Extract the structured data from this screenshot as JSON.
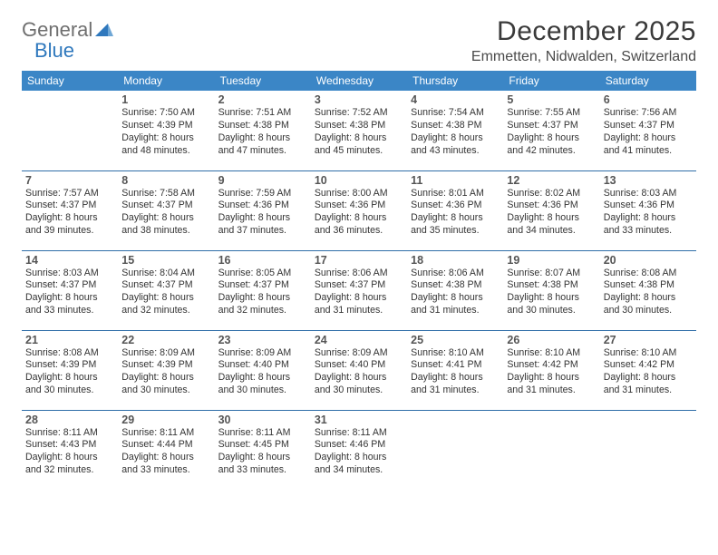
{
  "brand": {
    "word1": "General",
    "word2": "Blue"
  },
  "title": "December 2025",
  "location": "Emmetten, Nidwalden, Switzerland",
  "colors": {
    "header_bg": "#3b86c6",
    "header_text": "#ffffff",
    "row_border": "#2f6ea8",
    "brand_gray": "#6f6f6f",
    "brand_blue": "#2f78bd",
    "page_bg": "#ffffff"
  },
  "day_headers": [
    "Sunday",
    "Monday",
    "Tuesday",
    "Wednesday",
    "Thursday",
    "Friday",
    "Saturday"
  ],
  "weeks": [
    [
      null,
      {
        "n": "1",
        "sr": "7:50 AM",
        "ss": "4:39 PM",
        "dl": "8 hours and 48 minutes."
      },
      {
        "n": "2",
        "sr": "7:51 AM",
        "ss": "4:38 PM",
        "dl": "8 hours and 47 minutes."
      },
      {
        "n": "3",
        "sr": "7:52 AM",
        "ss": "4:38 PM",
        "dl": "8 hours and 45 minutes."
      },
      {
        "n": "4",
        "sr": "7:54 AM",
        "ss": "4:38 PM",
        "dl": "8 hours and 43 minutes."
      },
      {
        "n": "5",
        "sr": "7:55 AM",
        "ss": "4:37 PM",
        "dl": "8 hours and 42 minutes."
      },
      {
        "n": "6",
        "sr": "7:56 AM",
        "ss": "4:37 PM",
        "dl": "8 hours and 41 minutes."
      }
    ],
    [
      {
        "n": "7",
        "sr": "7:57 AM",
        "ss": "4:37 PM",
        "dl": "8 hours and 39 minutes."
      },
      {
        "n": "8",
        "sr": "7:58 AM",
        "ss": "4:37 PM",
        "dl": "8 hours and 38 minutes."
      },
      {
        "n": "9",
        "sr": "7:59 AM",
        "ss": "4:36 PM",
        "dl": "8 hours and 37 minutes."
      },
      {
        "n": "10",
        "sr": "8:00 AM",
        "ss": "4:36 PM",
        "dl": "8 hours and 36 minutes."
      },
      {
        "n": "11",
        "sr": "8:01 AM",
        "ss": "4:36 PM",
        "dl": "8 hours and 35 minutes."
      },
      {
        "n": "12",
        "sr": "8:02 AM",
        "ss": "4:36 PM",
        "dl": "8 hours and 34 minutes."
      },
      {
        "n": "13",
        "sr": "8:03 AM",
        "ss": "4:36 PM",
        "dl": "8 hours and 33 minutes."
      }
    ],
    [
      {
        "n": "14",
        "sr": "8:03 AM",
        "ss": "4:37 PM",
        "dl": "8 hours and 33 minutes."
      },
      {
        "n": "15",
        "sr": "8:04 AM",
        "ss": "4:37 PM",
        "dl": "8 hours and 32 minutes."
      },
      {
        "n": "16",
        "sr": "8:05 AM",
        "ss": "4:37 PM",
        "dl": "8 hours and 32 minutes."
      },
      {
        "n": "17",
        "sr": "8:06 AM",
        "ss": "4:37 PM",
        "dl": "8 hours and 31 minutes."
      },
      {
        "n": "18",
        "sr": "8:06 AM",
        "ss": "4:38 PM",
        "dl": "8 hours and 31 minutes."
      },
      {
        "n": "19",
        "sr": "8:07 AM",
        "ss": "4:38 PM",
        "dl": "8 hours and 30 minutes."
      },
      {
        "n": "20",
        "sr": "8:08 AM",
        "ss": "4:38 PM",
        "dl": "8 hours and 30 minutes."
      }
    ],
    [
      {
        "n": "21",
        "sr": "8:08 AM",
        "ss": "4:39 PM",
        "dl": "8 hours and 30 minutes."
      },
      {
        "n": "22",
        "sr": "8:09 AM",
        "ss": "4:39 PM",
        "dl": "8 hours and 30 minutes."
      },
      {
        "n": "23",
        "sr": "8:09 AM",
        "ss": "4:40 PM",
        "dl": "8 hours and 30 minutes."
      },
      {
        "n": "24",
        "sr": "8:09 AM",
        "ss": "4:40 PM",
        "dl": "8 hours and 30 minutes."
      },
      {
        "n": "25",
        "sr": "8:10 AM",
        "ss": "4:41 PM",
        "dl": "8 hours and 31 minutes."
      },
      {
        "n": "26",
        "sr": "8:10 AM",
        "ss": "4:42 PM",
        "dl": "8 hours and 31 minutes."
      },
      {
        "n": "27",
        "sr": "8:10 AM",
        "ss": "4:42 PM",
        "dl": "8 hours and 31 minutes."
      }
    ],
    [
      {
        "n": "28",
        "sr": "8:11 AM",
        "ss": "4:43 PM",
        "dl": "8 hours and 32 minutes."
      },
      {
        "n": "29",
        "sr": "8:11 AM",
        "ss": "4:44 PM",
        "dl": "8 hours and 33 minutes."
      },
      {
        "n": "30",
        "sr": "8:11 AM",
        "ss": "4:45 PM",
        "dl": "8 hours and 33 minutes."
      },
      {
        "n": "31",
        "sr": "8:11 AM",
        "ss": "4:46 PM",
        "dl": "8 hours and 34 minutes."
      },
      null,
      null,
      null
    ]
  ],
  "labels": {
    "sunrise": "Sunrise:",
    "sunset": "Sunset:",
    "daylight": "Daylight:"
  }
}
